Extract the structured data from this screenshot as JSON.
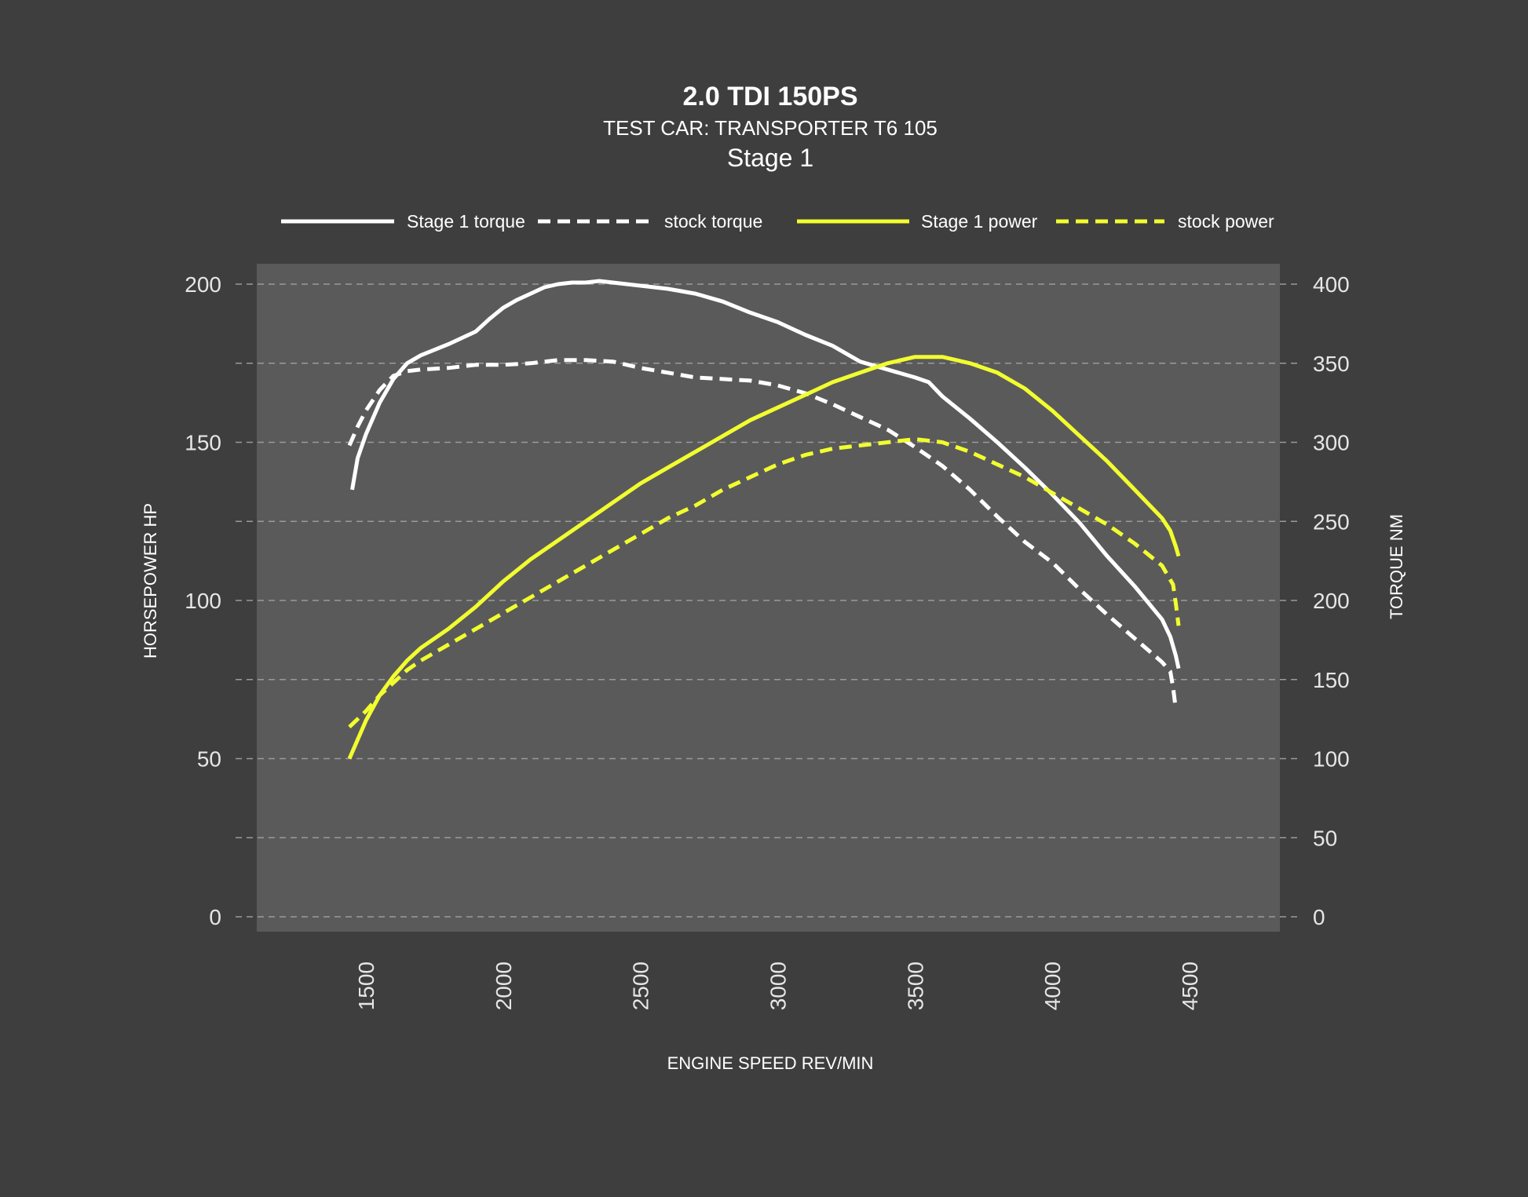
{
  "chart_data": {
    "type": "line",
    "title": "2.0 TDI 150PS",
    "subtitle": "TEST CAR: TRANSPORTER T6 105",
    "subtitle2": "Stage 1",
    "xlabel": "ENGINE SPEED REV/MIN",
    "ylabel_left": "HORSEPOWER HP",
    "ylabel_right": "TORQUE NM",
    "xlim": [
      1100,
      4850
    ],
    "ylim_left": [
      0,
      200
    ],
    "ylim_right": [
      0,
      400
    ],
    "x_ticks": [
      "1500",
      "2000",
      "2500",
      "3000",
      "3500",
      "4000",
      "4500"
    ],
    "y_left_ticks": [
      "0",
      "50",
      "100",
      "150",
      "200"
    ],
    "y_right_ticks": [
      "0",
      "50",
      "100",
      "150",
      "200",
      "250",
      "300",
      "350",
      "400"
    ],
    "grid": true,
    "legend_position": "top",
    "colors": {
      "background": "#3e3e3e",
      "plot_area": "#5a5a5a",
      "torque": "#ffffff",
      "power": "#f2ff2e",
      "grid": "#9a9a9a"
    },
    "series": [
      {
        "name": "Stage 1 torque",
        "axis": "right",
        "style": "solid",
        "x": [
          1450,
          1470,
          1500,
          1550,
          1600,
          1650,
          1700,
          1800,
          1900,
          1950,
          2000,
          2050,
          2100,
          2150,
          2200,
          2250,
          2300,
          2350,
          2400,
          2450,
          2500,
          2600,
          2700,
          2800,
          2900,
          3000,
          3100,
          3200,
          3300,
          3400,
          3500,
          3550,
          3600,
          3700,
          3800,
          3900,
          4000,
          4100,
          4200,
          4300,
          4400,
          4430,
          4450,
          4460
        ],
        "y": [
          270,
          290,
          305,
          325,
          340,
          350,
          355,
          362,
          370,
          378,
          385,
          390,
          394,
          398,
          400,
          401,
          401,
          402,
          401,
          400,
          399,
          397,
          394,
          389,
          382,
          376,
          368,
          361,
          351,
          346,
          341,
          338,
          329,
          315,
          300,
          284,
          267,
          249,
          228,
          209,
          188,
          177,
          165,
          157
        ]
      },
      {
        "name": "stock torque",
        "axis": "right",
        "style": "dashed",
        "x": [
          1440,
          1470,
          1500,
          1550,
          1600,
          1650,
          1700,
          1800,
          1900,
          2000,
          2100,
          2200,
          2300,
          2400,
          2500,
          2600,
          2700,
          2800,
          2900,
          3000,
          3100,
          3200,
          3300,
          3400,
          3500,
          3600,
          3700,
          3800,
          3900,
          4000,
          4100,
          4200,
          4300,
          4400,
          4430,
          4440,
          4450
        ],
        "y": [
          298,
          310,
          320,
          333,
          342,
          345,
          346,
          347,
          349,
          349,
          350,
          352,
          352,
          351,
          347,
          344,
          341,
          340,
          339,
          336,
          331,
          324,
          316,
          308,
          297,
          285,
          270,
          253,
          237,
          224,
          207,
          191,
          176,
          161,
          155,
          145,
          131
        ]
      },
      {
        "name": "Stage 1 power",
        "axis": "left",
        "style": "solid",
        "x": [
          1440,
          1500,
          1550,
          1600,
          1650,
          1700,
          1800,
          1900,
          2000,
          2100,
          2200,
          2300,
          2400,
          2500,
          2600,
          2700,
          2800,
          2900,
          3000,
          3100,
          3200,
          3300,
          3400,
          3500,
          3550,
          3600,
          3700,
          3800,
          3900,
          4000,
          4100,
          4200,
          4300,
          4400,
          4430,
          4450,
          4460
        ],
        "y": [
          50,
          62,
          70,
          76,
          81,
          85,
          91,
          98,
          106,
          113,
          119,
          125,
          131,
          137,
          142,
          147,
          152,
          157,
          161,
          165,
          169,
          172,
          175,
          177,
          177,
          177,
          175,
          172,
          167,
          160,
          152,
          144,
          135,
          126,
          122,
          117,
          114
        ]
      },
      {
        "name": "stock power",
        "axis": "left",
        "style": "dashed",
        "x": [
          1440,
          1500,
          1550,
          1600,
          1650,
          1700,
          1800,
          1900,
          2000,
          2100,
          2200,
          2300,
          2400,
          2500,
          2600,
          2700,
          2800,
          2900,
          3000,
          3100,
          3200,
          3300,
          3400,
          3500,
          3600,
          3700,
          3800,
          3900,
          4000,
          4100,
          4200,
          4300,
          4400,
          4440,
          4450,
          4460
        ],
        "y": [
          60,
          65,
          70,
          74,
          78,
          81,
          86,
          91,
          96,
          101,
          106,
          111,
          116,
          121,
          126,
          130,
          135,
          139,
          143,
          146,
          148,
          149,
          150,
          151,
          150,
          147,
          143,
          139,
          134,
          129,
          124,
          118,
          111,
          105,
          99,
          92
        ]
      }
    ]
  }
}
